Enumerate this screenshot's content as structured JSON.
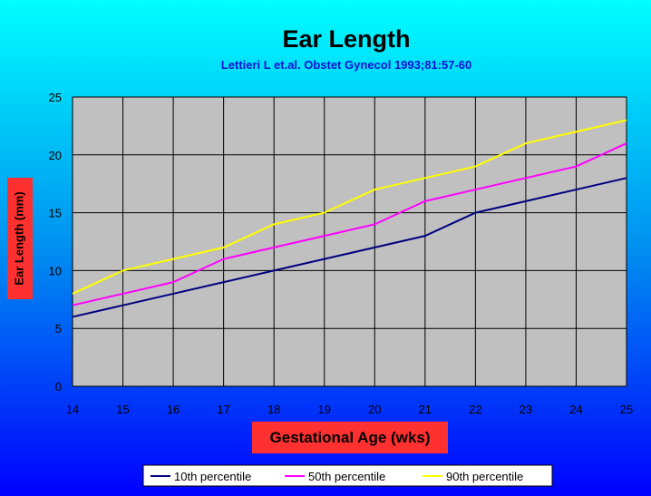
{
  "colors": {
    "background_top": "#00ffff",
    "background_bottom": "#0000ff",
    "plot_area": "#c0c0c0",
    "axis_title_box": "#ff3030",
    "subtitle": "#1010d0"
  },
  "chart_data": {
    "type": "line",
    "title": "Ear Length",
    "subtitle": "Lettieri L et.al. Obstet Gynecol 1993;81:57-60",
    "xlabel": "Gestational Age (wks)",
    "ylabel": "Ear Length (mm)",
    "x": [
      14,
      15,
      16,
      17,
      18,
      19,
      20,
      21,
      22,
      23,
      24,
      25
    ],
    "xlim": [
      14,
      25
    ],
    "ylim": [
      0,
      25
    ],
    "yticks": [
      0,
      5,
      10,
      15,
      20,
      25
    ],
    "grid": true,
    "legend_position": "bottom",
    "series": [
      {
        "name": "10th percentile",
        "color": "#000080",
        "values": [
          6,
          7,
          8,
          9,
          10,
          11,
          12,
          13,
          15,
          16,
          17,
          18
        ]
      },
      {
        "name": "50th percentile",
        "color": "#ff00ff",
        "values": [
          7,
          8,
          9,
          11,
          12,
          13,
          14,
          16,
          17,
          18,
          19,
          21
        ]
      },
      {
        "name": "90th percentile",
        "color": "#ffff00",
        "values": [
          8,
          10,
          11,
          12,
          14,
          15,
          17,
          18,
          19,
          21,
          22,
          23
        ]
      }
    ]
  }
}
